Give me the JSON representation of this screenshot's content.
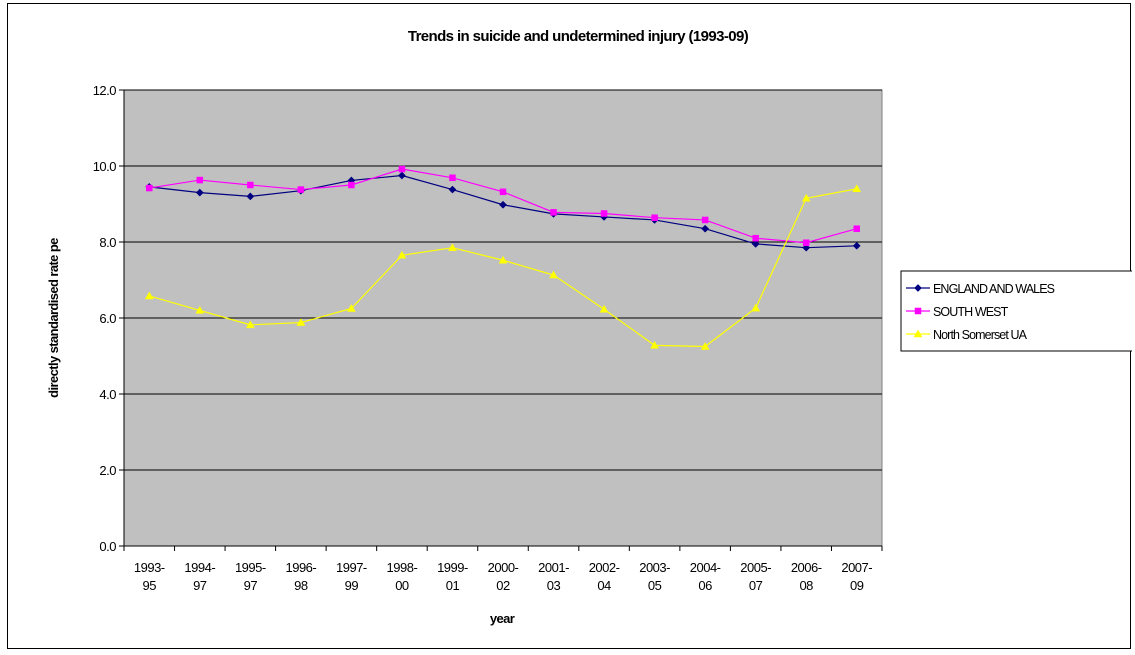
{
  "chart_data": {
    "type": "line",
    "title": "Trends in suicide and undetermined injury (1993-09)",
    "xlabel": "year",
    "ylabel": "directly standardised rate pe",
    "ylim": [
      0,
      12
    ],
    "ytick_step": 2,
    "ytick_labels": [
      "0.0",
      "2.0",
      "4.0",
      "6.0",
      "8.0",
      "10.0",
      "12.0"
    ],
    "grid": true,
    "legend_position": "right",
    "categories": [
      [
        "1993-",
        "95"
      ],
      [
        "1994-",
        "97"
      ],
      [
        "1995-",
        "97"
      ],
      [
        "1996-",
        "98"
      ],
      [
        "1997-",
        "99"
      ],
      [
        "1998-",
        "00"
      ],
      [
        "1999-",
        "01"
      ],
      [
        "2000-",
        "02"
      ],
      [
        "2001-",
        "03"
      ],
      [
        "2002-",
        "04"
      ],
      [
        "2003-",
        "05"
      ],
      [
        "2004-",
        "06"
      ],
      [
        "2005-",
        "07"
      ],
      [
        "2006-",
        "08"
      ],
      [
        "2007-",
        "09"
      ]
    ],
    "series": [
      {
        "name": "ENGLAND AND WALES",
        "color": "#000080",
        "marker": "diamond",
        "values": [
          9.45,
          9.3,
          9.2,
          9.35,
          9.62,
          9.75,
          9.38,
          8.98,
          8.74,
          8.66,
          8.58,
          8.35,
          7.95,
          7.85,
          7.9
        ]
      },
      {
        "name": "SOUTH WEST",
        "color": "#FF00FF",
        "marker": "square",
        "values": [
          9.42,
          9.63,
          9.5,
          9.38,
          9.5,
          9.92,
          9.69,
          9.32,
          8.78,
          8.75,
          8.64,
          8.58,
          8.1,
          7.98,
          8.35
        ]
      },
      {
        "name": "North Somerset UA",
        "color": "#FFFF00",
        "marker": "triangle",
        "values": [
          6.58,
          6.2,
          5.82,
          5.88,
          6.25,
          7.65,
          7.85,
          7.52,
          7.13,
          6.23,
          5.28,
          5.25,
          6.26,
          9.15,
          9.4
        ]
      }
    ]
  },
  "colors": {
    "plot_background": "#C0C0C0",
    "gridline": "#000000"
  }
}
